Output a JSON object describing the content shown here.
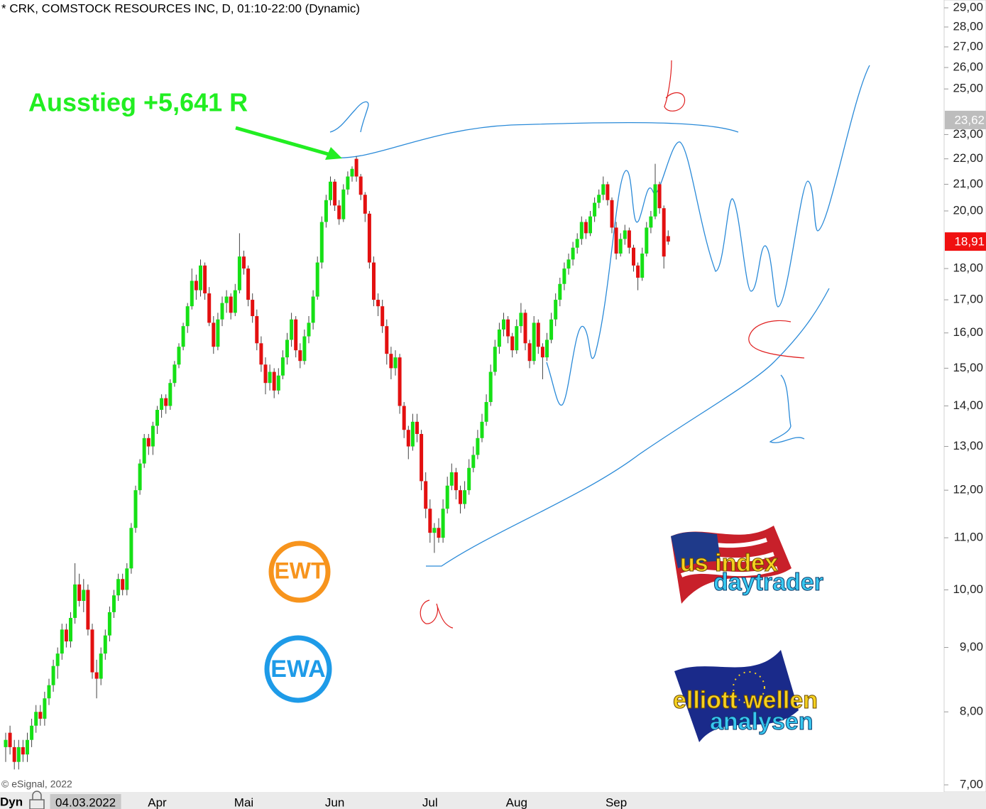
{
  "chart_data": {
    "type": "candlestick",
    "title": "* CRK, COMSTOCK RESOURCES INC, D, 01:10-22:00 (Dynamic)",
    "annotation": "Ausstieg +5,641 R",
    "log_scale": true,
    "up_color": "#16e016",
    "down_color": "#e31010",
    "ylim": [
      7,
      29
    ],
    "yticks": [
      {
        "value": 7,
        "label": "7,00"
      },
      {
        "value": 8,
        "label": "8,00"
      },
      {
        "value": 9,
        "label": "9,00"
      },
      {
        "value": 10,
        "label": "10,00"
      },
      {
        "value": 11,
        "label": "11,00"
      },
      {
        "value": 12,
        "label": "12,00"
      },
      {
        "value": 13,
        "label": "13,00"
      },
      {
        "value": 14,
        "label": "14,00"
      },
      {
        "value": 15,
        "label": "15,00"
      },
      {
        "value": 16,
        "label": "16,00"
      },
      {
        "value": 17,
        "label": "17,00"
      },
      {
        "value": 18,
        "label": "18,00"
      },
      {
        "value": 20,
        "label": "20,00"
      },
      {
        "value": 21,
        "label": "21,00"
      },
      {
        "value": 22,
        "label": "22,00"
      },
      {
        "value": 23,
        "label": "23,00"
      },
      {
        "value": 25,
        "label": "25,00"
      },
      {
        "value": 26,
        "label": "26,00"
      },
      {
        "value": 27,
        "label": "27,00"
      },
      {
        "value": 28,
        "label": "28,00"
      },
      {
        "value": 29,
        "label": "29,00"
      }
    ],
    "price_markers": [
      {
        "value": 23.62,
        "label": "23,62",
        "color": "#bdbdbd"
      },
      {
        "value": 18.91,
        "label": "18,91",
        "color": "#f01010"
      }
    ],
    "categories": [
      null,
      null,
      null,
      null,
      null,
      null,
      null,
      null,
      null,
      null,
      null,
      null,
      null,
      null,
      null,
      null,
      "04.03.2022",
      null,
      null,
      null,
      null,
      null,
      null,
      null,
      null,
      null,
      null,
      null,
      null,
      null,
      null,
      null,
      null,
      null,
      null,
      "Apr",
      null,
      null,
      null,
      null,
      null,
      null,
      null,
      null,
      null,
      null,
      null,
      null,
      null,
      null,
      null,
      null,
      null,
      null,
      null,
      "Mai",
      null,
      null,
      null,
      null,
      null,
      null,
      null,
      null,
      null,
      null,
      null,
      null,
      null,
      null,
      null,
      null,
      null,
      null,
      null,
      null,
      "Jun",
      null,
      null,
      null,
      null,
      null,
      null,
      null,
      null,
      null,
      null,
      null,
      null,
      null,
      null,
      null,
      null,
      null,
      null,
      null,
      null,
      null,
      "Jul",
      null,
      null,
      null,
      null,
      null,
      null,
      null,
      null,
      null,
      null,
      null,
      null,
      null,
      null,
      null,
      null,
      null,
      null,
      null,
      "Aug",
      null,
      null,
      null,
      null,
      null,
      null,
      null,
      null,
      null,
      null,
      null,
      null,
      null,
      null,
      null,
      null,
      null,
      null,
      null,
      null,
      null,
      null,
      "Sep",
      null,
      null,
      null,
      null,
      null,
      null,
      null,
      null,
      null,
      null,
      null,
      null
    ],
    "ohlc": [
      [
        7.5,
        7.7,
        7.3,
        7.6
      ],
      [
        7.7,
        7.8,
        7.4,
        7.5
      ],
      [
        7.5,
        7.6,
        7.2,
        7.3
      ],
      [
        7.3,
        7.6,
        7.2,
        7.5
      ],
      [
        7.5,
        7.6,
        7.3,
        7.4
      ],
      [
        7.4,
        7.7,
        7.3,
        7.6
      ],
      [
        7.6,
        7.9,
        7.5,
        7.8
      ],
      [
        7.8,
        8.1,
        7.7,
        8.0
      ],
      [
        8.0,
        8.1,
        7.8,
        7.9
      ],
      [
        7.9,
        8.3,
        7.8,
        8.2
      ],
      [
        8.2,
        8.5,
        8.1,
        8.4
      ],
      [
        8.4,
        8.8,
        8.3,
        8.7
      ],
      [
        8.7,
        9.0,
        8.5,
        8.9
      ],
      [
        8.9,
        9.4,
        8.8,
        9.3
      ],
      [
        9.3,
        9.4,
        9.0,
        9.1
      ],
      [
        9.1,
        9.6,
        9.0,
        9.5
      ],
      [
        9.5,
        10.5,
        9.4,
        10.1
      ],
      [
        10.1,
        10.3,
        9.7,
        9.8
      ],
      [
        9.8,
        10.2,
        9.6,
        10.0
      ],
      [
        10.0,
        10.1,
        9.2,
        9.3
      ],
      [
        9.3,
        9.4,
        8.5,
        8.6
      ],
      [
        8.6,
        8.8,
        8.2,
        8.5
      ],
      [
        8.5,
        9.0,
        8.4,
        8.9
      ],
      [
        8.9,
        9.3,
        8.8,
        9.2
      ],
      [
        9.2,
        9.7,
        9.1,
        9.6
      ],
      [
        9.6,
        10.0,
        9.5,
        9.9
      ],
      [
        9.9,
        10.3,
        9.8,
        10.2
      ],
      [
        10.2,
        10.3,
        9.9,
        10.0
      ],
      [
        10.0,
        10.5,
        9.9,
        10.4
      ],
      [
        10.4,
        11.3,
        10.3,
        11.2
      ],
      [
        11.2,
        12.1,
        11.1,
        12.0
      ],
      [
        12.0,
        12.7,
        11.9,
        12.6
      ],
      [
        12.6,
        13.3,
        12.5,
        13.2
      ],
      [
        13.2,
        13.3,
        12.8,
        13.0
      ],
      [
        13.0,
        13.6,
        12.8,
        13.5
      ],
      [
        13.5,
        14.0,
        13.3,
        13.9
      ],
      [
        13.9,
        14.3,
        13.7,
        14.2
      ],
      [
        14.2,
        14.3,
        13.8,
        14.0
      ],
      [
        14.0,
        14.7,
        13.9,
        14.6
      ],
      [
        14.6,
        15.2,
        14.5,
        15.1
      ],
      [
        15.1,
        15.7,
        15.0,
        15.6
      ],
      [
        15.6,
        16.3,
        15.5,
        16.2
      ],
      [
        16.2,
        16.9,
        16.0,
        16.8
      ],
      [
        16.8,
        18.0,
        16.7,
        17.6
      ],
      [
        17.6,
        17.8,
        17.0,
        17.3
      ],
      [
        17.3,
        18.3,
        17.1,
        18.1
      ],
      [
        18.1,
        18.2,
        17.0,
        17.2
      ],
      [
        17.2,
        17.4,
        16.2,
        16.3
      ],
      [
        16.3,
        16.5,
        15.4,
        15.6
      ],
      [
        15.6,
        16.6,
        15.5,
        16.4
      ],
      [
        16.4,
        17.1,
        16.2,
        16.9
      ],
      [
        16.9,
        17.3,
        16.6,
        17.1
      ],
      [
        17.1,
        17.2,
        16.4,
        16.6
      ],
      [
        16.6,
        17.5,
        16.5,
        17.3
      ],
      [
        17.3,
        19.2,
        17.2,
        18.4
      ],
      [
        18.4,
        18.6,
        17.8,
        18.0
      ],
      [
        18.0,
        18.1,
        16.8,
        17.0
      ],
      [
        17.0,
        17.2,
        16.3,
        16.5
      ],
      [
        16.5,
        16.7,
        15.5,
        15.7
      ],
      [
        15.7,
        15.9,
        14.9,
        15.1
      ],
      [
        15.1,
        15.3,
        14.3,
        14.6
      ],
      [
        14.6,
        15.1,
        14.4,
        14.9
      ],
      [
        14.9,
        15.0,
        14.2,
        14.4
      ],
      [
        14.4,
        15.0,
        14.3,
        14.8
      ],
      [
        14.8,
        15.5,
        14.7,
        15.3
      ],
      [
        15.3,
        16.0,
        15.1,
        15.8
      ],
      [
        15.8,
        16.6,
        15.6,
        16.4
      ],
      [
        16.4,
        16.5,
        15.3,
        15.5
      ],
      [
        15.5,
        15.7,
        15.0,
        15.2
      ],
      [
        15.2,
        16.1,
        15.1,
        15.9
      ],
      [
        15.9,
        16.5,
        15.7,
        16.3
      ],
      [
        16.3,
        17.3,
        16.1,
        17.1
      ],
      [
        17.1,
        18.4,
        17.0,
        18.2
      ],
      [
        18.2,
        19.8,
        18.0,
        19.6
      ],
      [
        19.6,
        20.6,
        19.4,
        20.4
      ],
      [
        20.4,
        21.3,
        20.2,
        21.1
      ],
      [
        21.1,
        21.2,
        20.0,
        20.2
      ],
      [
        20.2,
        20.4,
        19.5,
        19.7
      ],
      [
        19.7,
        21.0,
        19.6,
        20.8
      ],
      [
        20.8,
        21.5,
        20.6,
        21.3
      ],
      [
        21.3,
        21.7,
        21.1,
        21.6
      ],
      [
        22.0,
        22.1,
        21.1,
        21.3
      ],
      [
        21.3,
        21.4,
        20.4,
        20.6
      ],
      [
        20.6,
        20.7,
        19.6,
        19.9
      ],
      [
        19.9,
        20.0,
        18.0,
        18.2
      ],
      [
        18.2,
        18.4,
        16.8,
        17.0
      ],
      [
        17.0,
        17.2,
        16.5,
        16.8
      ],
      [
        16.8,
        17.0,
        16.0,
        16.2
      ],
      [
        16.2,
        16.4,
        15.1,
        15.4
      ],
      [
        15.4,
        15.6,
        14.7,
        15.0
      ],
      [
        15.0,
        15.5,
        14.8,
        15.3
      ],
      [
        15.3,
        15.4,
        13.8,
        14.0
      ],
      [
        14.0,
        14.1,
        13.2,
        13.4
      ],
      [
        13.4,
        13.5,
        12.7,
        13.0
      ],
      [
        13.0,
        13.8,
        12.9,
        13.6
      ],
      [
        13.6,
        13.8,
        13.1,
        13.3
      ],
      [
        13.3,
        13.4,
        12.0,
        12.2
      ],
      [
        12.2,
        12.4,
        11.4,
        11.6
      ],
      [
        11.6,
        11.8,
        10.9,
        11.1
      ],
      [
        11.1,
        11.3,
        10.7,
        11.2
      ],
      [
        11.2,
        11.4,
        10.9,
        11.0
      ],
      [
        11.0,
        11.8,
        10.9,
        11.6
      ],
      [
        11.6,
        12.3,
        11.5,
        12.1
      ],
      [
        12.1,
        12.6,
        12.0,
        12.4
      ],
      [
        12.4,
        12.5,
        11.8,
        12.0
      ],
      [
        12.0,
        12.1,
        11.5,
        11.7
      ],
      [
        11.7,
        12.2,
        11.6,
        12.0
      ],
      [
        12.0,
        12.7,
        11.9,
        12.5
      ],
      [
        12.5,
        13.0,
        12.4,
        12.8
      ],
      [
        12.8,
        13.4,
        12.7,
        13.2
      ],
      [
        13.2,
        13.8,
        13.1,
        13.6
      ],
      [
        13.6,
        14.3,
        13.5,
        14.1
      ],
      [
        14.1,
        15.1,
        14.0,
        14.9
      ],
      [
        14.9,
        15.8,
        14.8,
        15.6
      ],
      [
        15.6,
        16.3,
        15.4,
        16.1
      ],
      [
        16.1,
        16.6,
        15.9,
        16.4
      ],
      [
        16.4,
        16.5,
        15.7,
        15.9
      ],
      [
        15.9,
        16.0,
        15.3,
        15.5
      ],
      [
        15.5,
        16.4,
        15.4,
        16.2
      ],
      [
        16.2,
        16.9,
        16.0,
        16.6
      ],
      [
        16.6,
        16.7,
        15.5,
        15.7
      ],
      [
        15.7,
        15.8,
        15.0,
        15.2
      ],
      [
        15.2,
        16.5,
        15.1,
        16.3
      ],
      [
        16.3,
        16.4,
        15.4,
        15.6
      ],
      [
        15.6,
        15.7,
        14.7,
        15.3
      ],
      [
        15.3,
        16.0,
        15.2,
        15.8
      ],
      [
        15.8,
        16.6,
        15.7,
        16.4
      ],
      [
        16.4,
        17.2,
        16.2,
        17.0
      ],
      [
        17.0,
        17.7,
        16.8,
        17.5
      ],
      [
        17.5,
        18.2,
        17.3,
        18.0
      ],
      [
        18.0,
        18.5,
        17.8,
        18.3
      ],
      [
        18.3,
        18.9,
        18.1,
        18.7
      ],
      [
        18.7,
        19.2,
        18.5,
        19.0
      ],
      [
        19.0,
        19.8,
        18.8,
        19.6
      ],
      [
        19.6,
        19.7,
        19.0,
        19.2
      ],
      [
        19.2,
        20.0,
        19.1,
        19.8
      ],
      [
        19.8,
        20.5,
        19.6,
        20.3
      ],
      [
        20.3,
        20.8,
        20.1,
        20.6
      ],
      [
        20.6,
        21.3,
        20.4,
        21.0
      ],
      [
        21.0,
        21.1,
        20.2,
        20.4
      ],
      [
        20.4,
        20.5,
        19.2,
        19.4
      ],
      [
        19.4,
        19.6,
        18.3,
        18.5
      ],
      [
        18.5,
        19.2,
        18.4,
        19.0
      ],
      [
        19.0,
        19.5,
        18.8,
        19.3
      ],
      [
        19.3,
        19.4,
        18.5,
        18.7
      ],
      [
        18.7,
        18.8,
        17.9,
        18.1
      ],
      [
        18.1,
        18.2,
        17.3,
        17.7
      ],
      [
        17.7,
        18.7,
        17.6,
        18.5
      ],
      [
        18.5,
        19.6,
        18.4,
        19.4
      ],
      [
        19.4,
        20.0,
        19.2,
        19.8
      ],
      [
        19.8,
        21.8,
        19.7,
        21.0
      ],
      [
        21.0,
        21.1,
        19.9,
        20.1
      ],
      [
        20.1,
        20.2,
        18.0,
        18.4
      ],
      [
        19.1,
        19.3,
        18.8,
        18.91
      ]
    ]
  },
  "badges": {
    "ewt": "EWT",
    "ewa": "EWA"
  },
  "logos": {
    "us_index": [
      "us index",
      "daytrader"
    ],
    "elliott": [
      "elliott wellen",
      "analysen"
    ]
  },
  "footer": {
    "copyright": "© eSignal, 2022",
    "mode": "Dyn"
  }
}
